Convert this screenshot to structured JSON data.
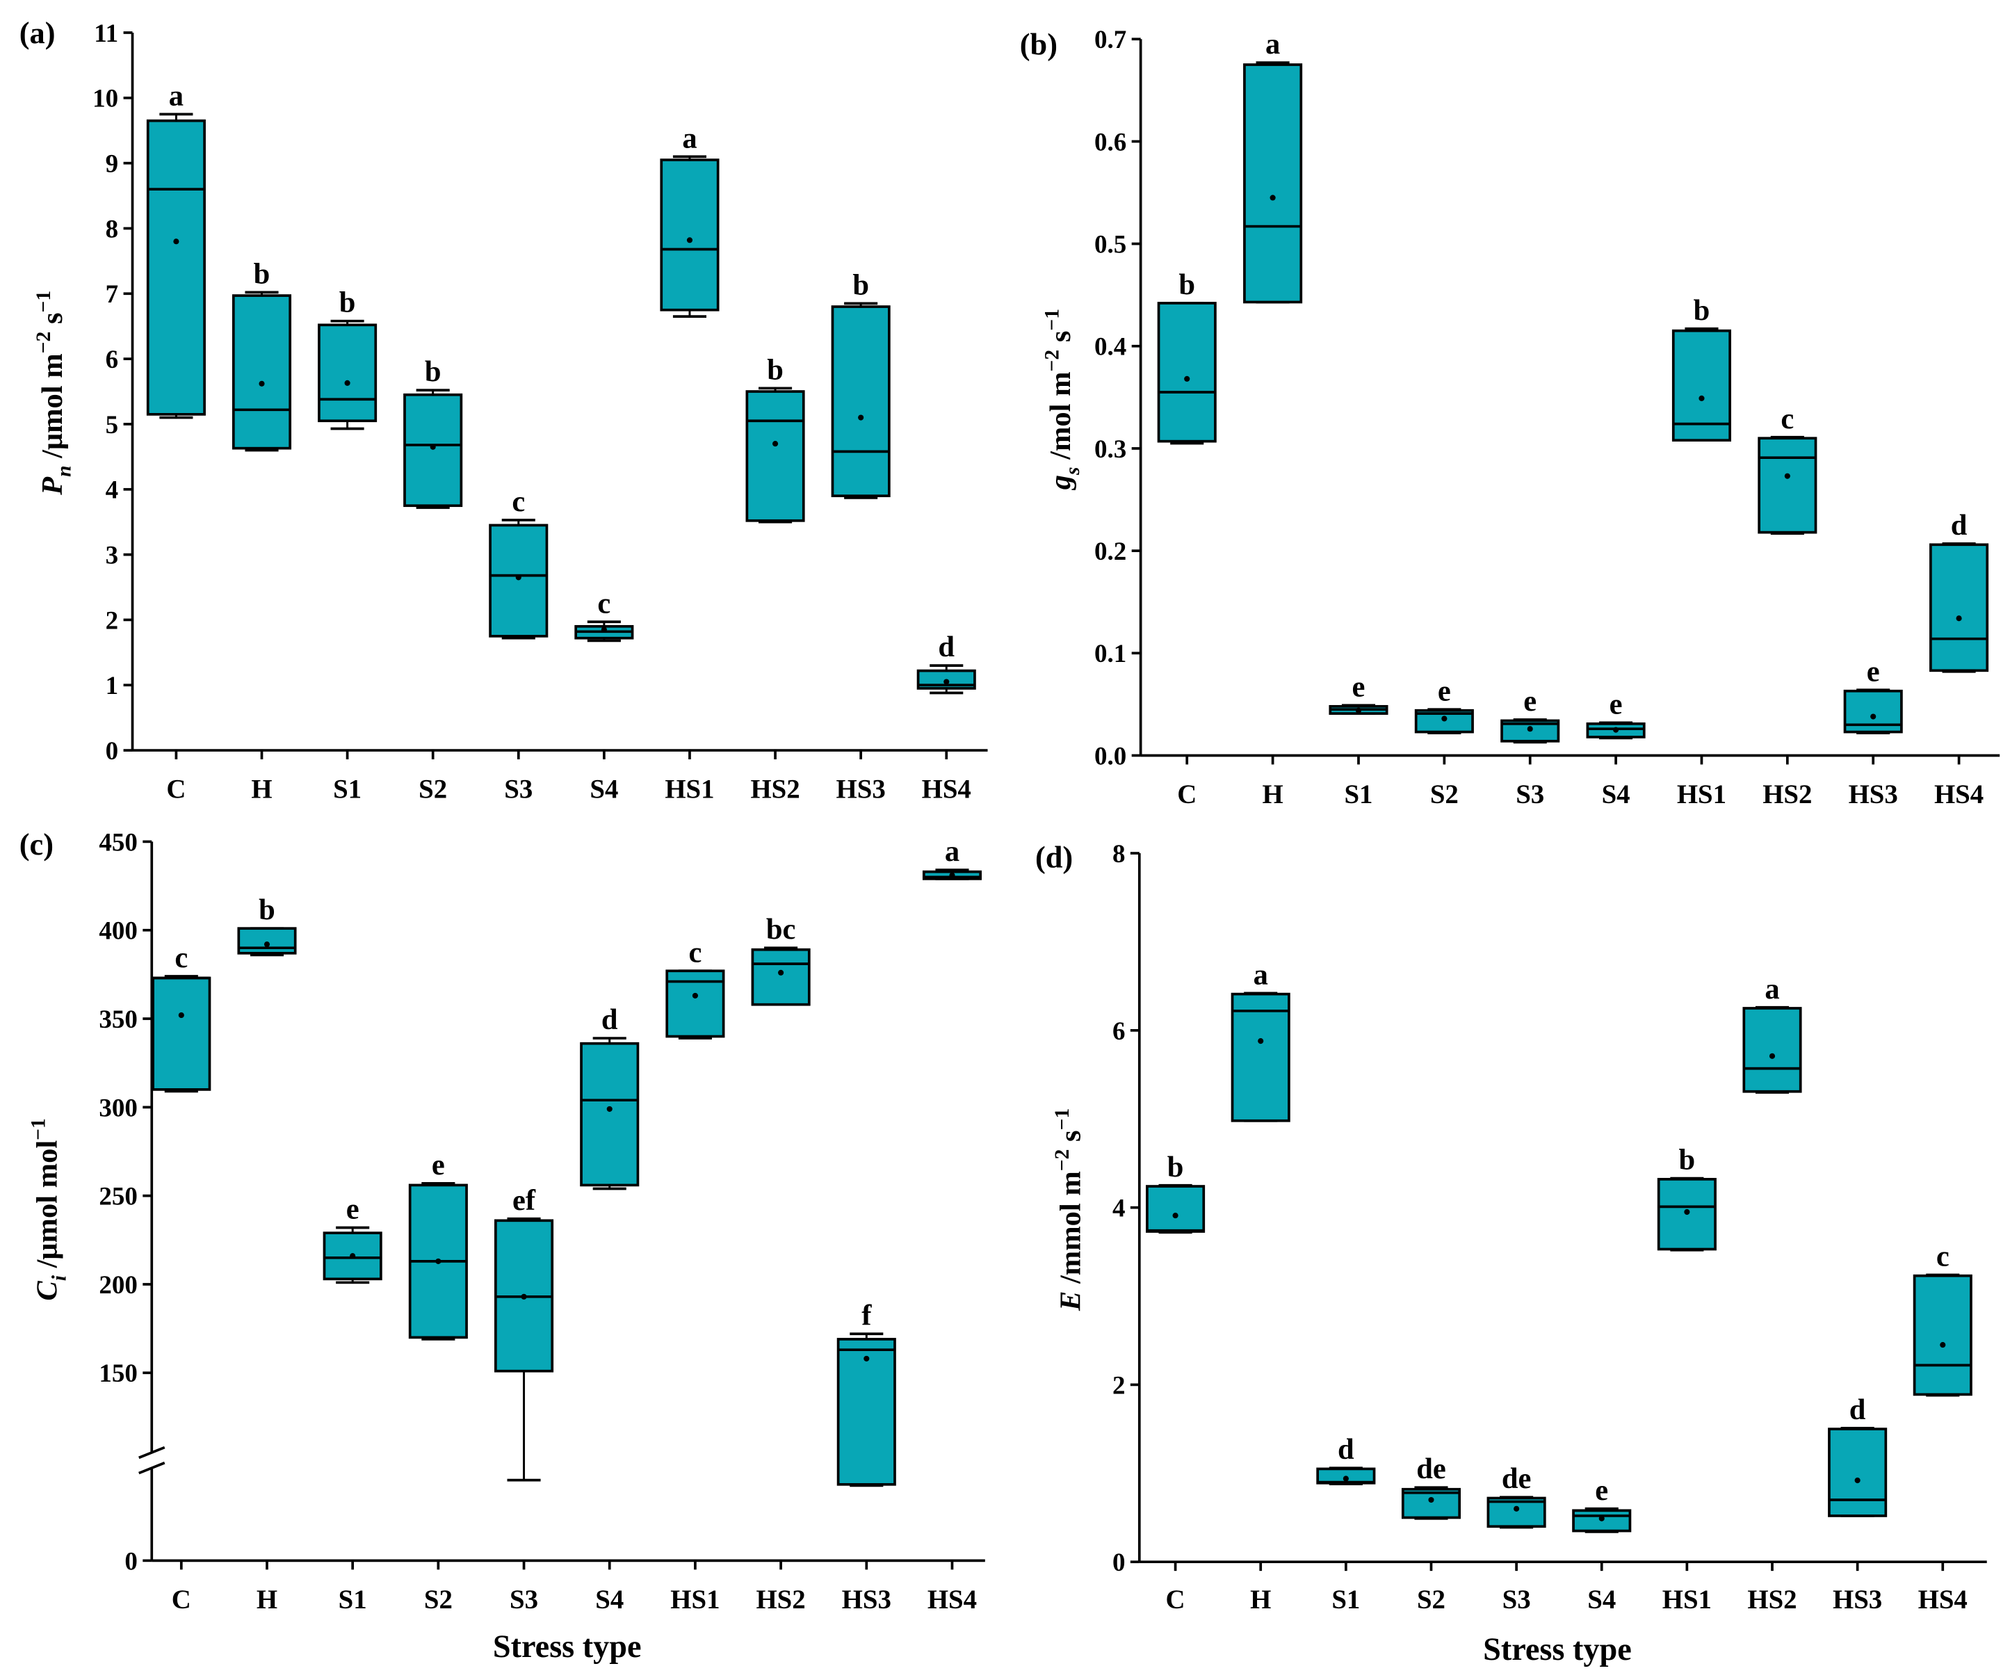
{
  "colors": {
    "box_fill": "#08A7B6",
    "stroke": "#000000"
  },
  "chart_data": [
    {
      "type": "box",
      "panel_label": "(a)",
      "ylabel": [
        {
          "t": "P",
          "s": "i"
        },
        {
          "t": "n",
          "s": "sub"
        },
        {
          "t": " /μmol m",
          "s": "n"
        },
        {
          "t": "−2",
          "s": "sup"
        },
        {
          "t": " s",
          "s": "n"
        },
        {
          "t": "−1",
          "s": "sup"
        }
      ],
      "xlabel": "",
      "ylim": [
        0,
        11
      ],
      "yticks": [
        "0",
        "1",
        "2",
        "3",
        "4",
        "5",
        "6",
        "7",
        "8",
        "9",
        "10",
        "11"
      ],
      "ytick_values": [
        0,
        1,
        2,
        3,
        4,
        5,
        6,
        7,
        8,
        9,
        10,
        11
      ],
      "categories": [
        "C",
        "H",
        "S1",
        "S2",
        "S3",
        "S4",
        "HS1",
        "HS2",
        "HS3",
        "HS4"
      ],
      "boxes": [
        {
          "min": 5.1,
          "q1": 5.15,
          "median": 8.6,
          "q3": 9.65,
          "max": 9.75,
          "mean": 7.8,
          "letter": "a"
        },
        {
          "min": 4.6,
          "q1": 4.63,
          "median": 5.22,
          "q3": 6.97,
          "max": 7.02,
          "mean": 5.62,
          "letter": "b"
        },
        {
          "min": 4.93,
          "q1": 5.05,
          "median": 5.38,
          "q3": 6.52,
          "max": 6.58,
          "mean": 5.63,
          "letter": "b"
        },
        {
          "min": 3.72,
          "q1": 3.75,
          "median": 4.68,
          "q3": 5.45,
          "max": 5.52,
          "mean": 4.65,
          "letter": "b"
        },
        {
          "min": 1.72,
          "q1": 1.75,
          "median": 2.68,
          "q3": 3.45,
          "max": 3.53,
          "mean": 2.65,
          "letter": "c"
        },
        {
          "min": 1.68,
          "q1": 1.72,
          "median": 1.82,
          "q3": 1.9,
          "max": 1.97,
          "mean": 1.85,
          "letter": "c"
        },
        {
          "min": 6.65,
          "q1": 6.75,
          "median": 7.68,
          "q3": 9.05,
          "max": 9.1,
          "mean": 7.82,
          "letter": "a"
        },
        {
          "min": 3.5,
          "q1": 3.52,
          "median": 5.05,
          "q3": 5.5,
          "max": 5.55,
          "mean": 4.7,
          "letter": "b"
        },
        {
          "min": 3.87,
          "q1": 3.9,
          "median": 4.58,
          "q3": 6.8,
          "max": 6.85,
          "mean": 5.1,
          "letter": "b"
        },
        {
          "min": 0.88,
          "q1": 0.95,
          "median": 1.0,
          "q3": 1.22,
          "max": 1.3,
          "mean": 1.05,
          "letter": "d"
        }
      ]
    },
    {
      "type": "box",
      "panel_label": "(b)",
      "ylabel": [
        {
          "t": "g",
          "s": "i"
        },
        {
          "t": "s",
          "s": "sub"
        },
        {
          "t": " /mol m",
          "s": "n"
        },
        {
          "t": "−2",
          "s": "sup"
        },
        {
          "t": " s",
          "s": "n"
        },
        {
          "t": "−1",
          "s": "sup"
        }
      ],
      "xlabel": "",
      "ylim": [
        0,
        0.7
      ],
      "yticks": [
        "0.0",
        "0.1",
        "0.2",
        "0.3",
        "0.4",
        "0.5",
        "0.6",
        "0.7"
      ],
      "ytick_values": [
        0,
        0.1,
        0.2,
        0.3,
        0.4,
        0.5,
        0.6,
        0.7
      ],
      "categories": [
        "C",
        "H",
        "S1",
        "S2",
        "S3",
        "S4",
        "HS1",
        "HS2",
        "HS3",
        "HS4"
      ],
      "boxes": [
        {
          "min": 0.305,
          "q1": 0.307,
          "median": 0.355,
          "q3": 0.442,
          "max": 0.442,
          "mean": 0.368,
          "letter": "b"
        },
        {
          "min": 0.443,
          "q1": 0.443,
          "median": 0.517,
          "q3": 0.675,
          "max": 0.677,
          "mean": 0.545,
          "letter": "a"
        },
        {
          "min": 0.041,
          "q1": 0.041,
          "median": 0.045,
          "q3": 0.048,
          "max": 0.049,
          "mean": 0.044,
          "letter": "e"
        },
        {
          "min": 0.022,
          "q1": 0.023,
          "median": 0.041,
          "q3": 0.044,
          "max": 0.045,
          "mean": 0.036,
          "letter": "e"
        },
        {
          "min": 0.013,
          "q1": 0.014,
          "median": 0.031,
          "q3": 0.034,
          "max": 0.035,
          "mean": 0.026,
          "letter": "e"
        },
        {
          "min": 0.017,
          "q1": 0.018,
          "median": 0.026,
          "q3": 0.031,
          "max": 0.032,
          "mean": 0.025,
          "letter": "e"
        },
        {
          "min": 0.308,
          "q1": 0.308,
          "median": 0.324,
          "q3": 0.415,
          "max": 0.417,
          "mean": 0.349,
          "letter": "b"
        },
        {
          "min": 0.217,
          "q1": 0.218,
          "median": 0.291,
          "q3": 0.31,
          "max": 0.311,
          "mean": 0.273,
          "letter": "c"
        },
        {
          "min": 0.022,
          "q1": 0.023,
          "median": 0.03,
          "q3": 0.063,
          "max": 0.064,
          "mean": 0.038,
          "letter": "e"
        },
        {
          "min": 0.082,
          "q1": 0.083,
          "median": 0.114,
          "q3": 0.206,
          "max": 0.207,
          "mean": 0.134,
          "letter": "d"
        }
      ]
    },
    {
      "type": "box",
      "panel_label": "(c)",
      "ylabel": [
        {
          "t": "C",
          "s": "i"
        },
        {
          "t": "i",
          "s": "sub"
        },
        {
          "t": " /μmol mol",
          "s": "n"
        },
        {
          "t": "−1",
          "s": "sup"
        }
      ],
      "xlabel": "Stress type",
      "ylim": [
        0,
        450
      ],
      "axis_break": [
        0,
        150
      ],
      "yticks": [
        "0",
        "150",
        "200",
        "250",
        "300",
        "350",
        "400",
        "450"
      ],
      "ytick_values": [
        0,
        150,
        200,
        250,
        300,
        350,
        400,
        450
      ],
      "categories": [
        "C",
        "H",
        "S1",
        "S2",
        "S3",
        "S4",
        "HS1",
        "HS2",
        "HS3",
        "HS4"
      ],
      "boxes": [
        {
          "min": 309,
          "q1": 310,
          "median": 373,
          "q3": 373,
          "max": 374,
          "mean": 352,
          "letter": "c"
        },
        {
          "min": 386,
          "q1": 387,
          "median": 390,
          "q3": 401,
          "max": 401,
          "mean": 392,
          "letter": "b"
        },
        {
          "min": 201,
          "q1": 203,
          "median": 215,
          "q3": 229,
          "max": 232,
          "mean": 216,
          "letter": "e"
        },
        {
          "min": 169,
          "q1": 170,
          "median": 213,
          "q3": 256,
          "max": 257,
          "mean": 213,
          "letter": "e"
        },
        {
          "min": 149,
          "q1": 151,
          "median": 193,
          "q3": 236,
          "max": 237,
          "mean": 193,
          "letter": "ef"
        },
        {
          "min": 254,
          "q1": 256,
          "median": 304,
          "q3": 336,
          "max": 339,
          "mean": 299,
          "letter": "d"
        },
        {
          "min": 339,
          "q1": 340,
          "median": 371,
          "q3": 377,
          "max": 377,
          "mean": 363,
          "letter": "c"
        },
        {
          "min": 358,
          "q1": 358,
          "median": 381,
          "q3": 389,
          "max": 390,
          "mean": 376,
          "letter": "bc"
        },
        {
          "min": 139,
          "q1": 141,
          "median": 163,
          "q3": 169,
          "max": 172,
          "mean": 158,
          "letter": "f"
        },
        {
          "min": 429,
          "q1": 429,
          "median": 430,
          "q3": 433,
          "max": 434,
          "mean": 431,
          "letter": "a"
        }
      ]
    },
    {
      "type": "box",
      "panel_label": "(d)",
      "ylabel": [
        {
          "t": "E",
          "s": "i"
        },
        {
          "t": " /mmol m",
          "s": "n"
        },
        {
          "t": "−2",
          "s": "sup"
        },
        {
          "t": " s",
          "s": "n"
        },
        {
          "t": "−1",
          "s": "sup"
        }
      ],
      "xlabel": "Stress type",
      "ylim": [
        0,
        8
      ],
      "yticks": [
        "0",
        "2",
        "4",
        "6",
        "8"
      ],
      "ytick_values": [
        0,
        2,
        4,
        6,
        8
      ],
      "categories": [
        "C",
        "H",
        "S1",
        "S2",
        "S3",
        "S4",
        "HS1",
        "HS2",
        "HS3",
        "HS4"
      ],
      "boxes": [
        {
          "min": 3.72,
          "q1": 3.73,
          "median": 3.74,
          "q3": 4.24,
          "max": 4.25,
          "mean": 3.91,
          "letter": "b"
        },
        {
          "min": 4.98,
          "q1": 4.98,
          "median": 6.22,
          "q3": 6.41,
          "max": 6.42,
          "mean": 5.88,
          "letter": "a"
        },
        {
          "min": 0.88,
          "q1": 0.89,
          "median": 0.9,
          "q3": 1.05,
          "max": 1.06,
          "mean": 0.94,
          "letter": "d"
        },
        {
          "min": 0.49,
          "q1": 0.5,
          "median": 0.78,
          "q3": 0.82,
          "max": 0.84,
          "mean": 0.7,
          "letter": "de"
        },
        {
          "min": 0.39,
          "q1": 0.4,
          "median": 0.68,
          "q3": 0.72,
          "max": 0.73,
          "mean": 0.6,
          "letter": "de"
        },
        {
          "min": 0.34,
          "q1": 0.35,
          "median": 0.52,
          "q3": 0.58,
          "max": 0.6,
          "mean": 0.49,
          "letter": "e"
        },
        {
          "min": 3.52,
          "q1": 3.53,
          "median": 4.01,
          "q3": 4.32,
          "max": 4.33,
          "mean": 3.95,
          "letter": "b"
        },
        {
          "min": 5.3,
          "q1": 5.31,
          "median": 5.57,
          "q3": 6.25,
          "max": 6.26,
          "mean": 5.71,
          "letter": "a"
        },
        {
          "min": 0.52,
          "q1": 0.52,
          "median": 0.7,
          "q3": 1.5,
          "max": 1.51,
          "mean": 0.92,
          "letter": "d"
        },
        {
          "min": 1.88,
          "q1": 1.89,
          "median": 2.22,
          "q3": 3.23,
          "max": 3.24,
          "mean": 2.45,
          "letter": "c"
        }
      ]
    }
  ]
}
